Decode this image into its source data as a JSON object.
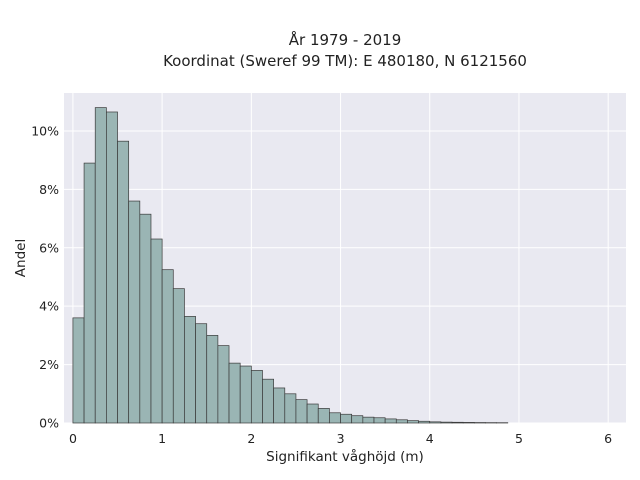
{
  "chart_data": {
    "type": "bar",
    "title": [
      "År 1979 - 2019",
      "Koordinat (Sweref 99 TM): E 480180, N 6121560"
    ],
    "xlabel": "Signifikant våghöjd (m)",
    "ylabel": "Andel",
    "xlim": [
      -0.1,
      6.2
    ],
    "ylim": [
      0,
      11.3
    ],
    "x_ticks": [
      0,
      1,
      2,
      3,
      4,
      5,
      6
    ],
    "x_tick_labels": [
      "0",
      "1",
      "2",
      "3",
      "4",
      "5",
      "6"
    ],
    "y_ticks": [
      0,
      2,
      4,
      6,
      8,
      10
    ],
    "y_tick_labels": [
      "0%",
      "2%",
      "4%",
      "6%",
      "8%",
      "10%"
    ],
    "bin_start": 0.0,
    "bin_width": 0.125,
    "values": [
      3.6,
      8.9,
      10.8,
      10.65,
      9.65,
      7.6,
      7.15,
      6.3,
      5.25,
      4.6,
      3.65,
      3.4,
      3.0,
      2.65,
      2.05,
      1.95,
      1.8,
      1.5,
      1.2,
      1.0,
      0.8,
      0.65,
      0.5,
      0.35,
      0.3,
      0.25,
      0.2,
      0.18,
      0.14,
      0.11,
      0.08,
      0.06,
      0.04,
      0.03,
      0.025,
      0.02,
      0.015,
      0.012,
      0.01
    ],
    "grid": true,
    "colors": {
      "bar_fill": "#9ab5b4",
      "bar_edge": "#3a3a3a",
      "plot_background": "#e9e9f1",
      "grid": "#ffffff"
    }
  }
}
